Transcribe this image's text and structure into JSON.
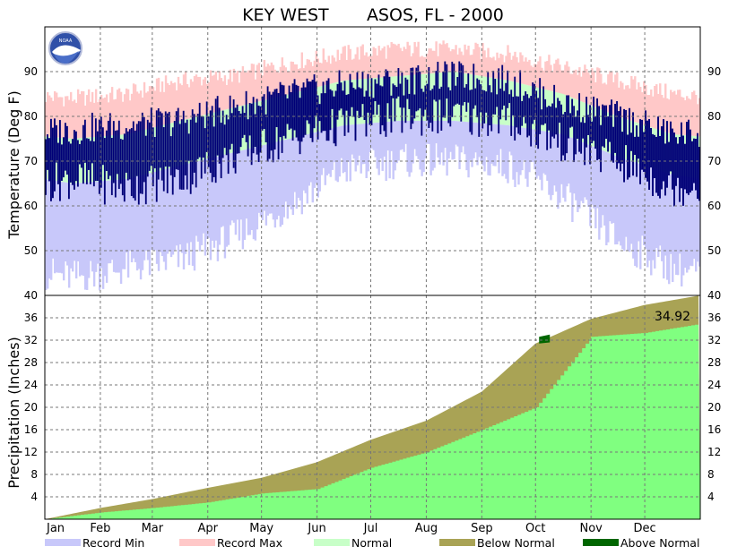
{
  "title": "KEY WEST       ASOS, FL - 2000",
  "colors": {
    "record_min": "#c8c8fa",
    "record_max": "#ffc8c8",
    "normal": "#c8ffc8",
    "actual_temp": "#000077",
    "below_normal": "#a9a355",
    "above_normal": "#006600",
    "precip_actual": "#80ff80"
  },
  "legend": [
    {
      "label": "Record Min",
      "color": "#c8c8fa"
    },
    {
      "label": "Record Max",
      "color": "#ffc8c8"
    },
    {
      "label": "Normal",
      "color": "#c8ffc8"
    },
    {
      "label": "Below Normal",
      "color": "#a9a355"
    },
    {
      "label": "Above Normal",
      "color": "#006600"
    }
  ],
  "chart_data": [
    {
      "type": "area",
      "ylabel": "Temperature (Deg F)",
      "ylim": [
        40,
        100
      ],
      "yticks": [
        50,
        60,
        70,
        80,
        90
      ],
      "grid": true,
      "months": [
        "Jan",
        "Feb",
        "Mar",
        "Apr",
        "May",
        "Jun",
        "Jul",
        "Aug",
        "Sep",
        "Oct",
        "Nov",
        "Dec"
      ],
      "monthly_approx": {
        "record_max": [
          84,
          85,
          88,
          89,
          92,
          94,
          95,
          95,
          94,
          91,
          88,
          85
        ],
        "normal_high": [
          75,
          76,
          79,
          82,
          85,
          88,
          89,
          90,
          88,
          85,
          80,
          76
        ],
        "normal_low": [
          65,
          66,
          69,
          72,
          75,
          78,
          79,
          79,
          78,
          76,
          71,
          67
        ],
        "record_min": [
          44,
          46,
          48,
          53,
          60,
          68,
          70,
          70,
          69,
          62,
          52,
          46
        ],
        "actual_high": [
          77,
          78,
          79,
          82,
          85,
          87,
          88,
          89,
          88,
          83,
          80,
          76
        ],
        "actual_low": [
          66,
          64,
          66,
          71,
          75,
          78,
          80,
          80,
          79,
          74,
          70,
          64
        ]
      }
    },
    {
      "type": "area",
      "ylabel": "Precipitation (Inches)",
      "ylim": [
        0,
        40
      ],
      "yticks": [
        4,
        8,
        12,
        16,
        20,
        24,
        28,
        32,
        36,
        40
      ],
      "grid": true,
      "annotation": "34.92",
      "months": [
        "Jan",
        "Feb",
        "Mar",
        "Apr",
        "May",
        "Jun",
        "Jul",
        "Aug",
        "Sep",
        "Oct",
        "Nov",
        "Dec"
      ],
      "normal_cumulative_month_start": [
        0.0,
        2.0,
        3.6,
        5.6,
        7.4,
        10.2,
        14.2,
        17.6,
        22.8,
        31.4,
        35.8,
        38.3
      ],
      "normal_cumulative_year_end": 40.0,
      "actual_cumulative_month_start": [
        0.0,
        1.2,
        2.0,
        3.0,
        4.6,
        5.4,
        9.2,
        12.0,
        16.0,
        20.0,
        32.6,
        33.3
      ],
      "actual_cumulative_year_end": 34.92
    }
  ]
}
